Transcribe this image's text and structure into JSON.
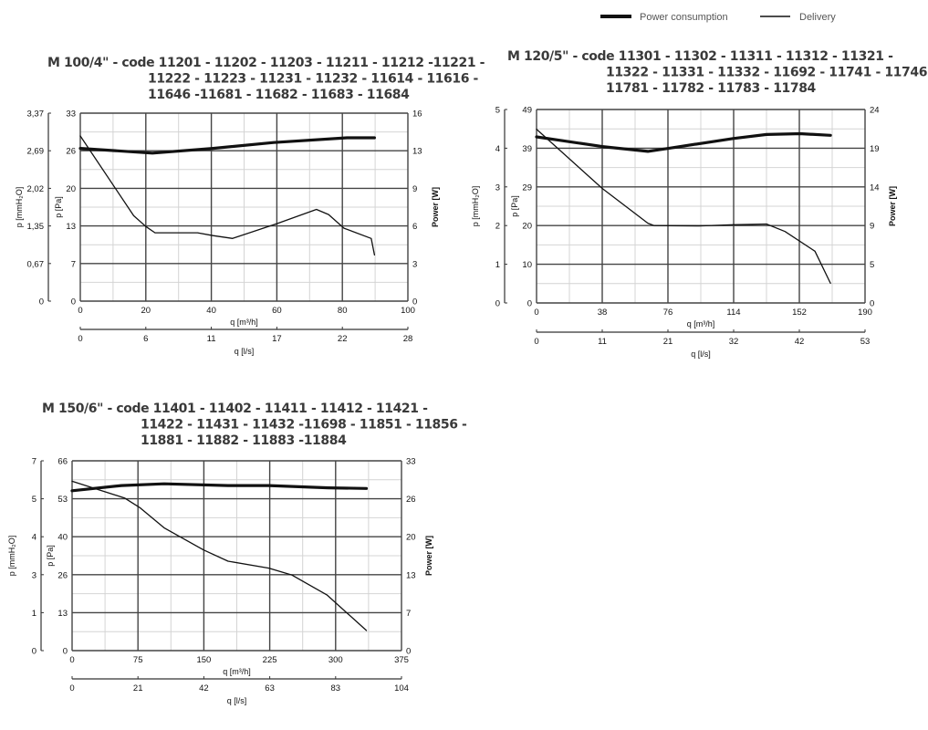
{
  "legend": {
    "power_label": "Power consumption",
    "delivery_label": "Delivery"
  },
  "colors": {
    "curve": "#111111",
    "major_grid": "#444444",
    "minor_grid": "#d4d4d4",
    "title": "#3a3a3a"
  },
  "chart_data": [
    {
      "type": "line",
      "title_lines": [
        "M 100/4\" - code 11201 - 11202 - 11203 - 11211 - 11212 -11221 -",
        "11222 - 11223 - 11231 - 11232 - 11614 - 11616 -",
        "11646 -11681 - 11682 - 11683 - 11684"
      ],
      "xlabel": "q [m³/h]",
      "xlim": [
        0,
        100
      ],
      "xticks": [
        "0",
        "20",
        "40",
        "60",
        "80",
        "100"
      ],
      "x2label": "q [l/s]",
      "x2ticks": [
        "0",
        "6",
        "11",
        "17",
        "22",
        "28"
      ],
      "ylabel": "p [Pa]",
      "ylim": [
        0,
        33
      ],
      "yticks": [
        "0",
        "7",
        "13",
        "20",
        "26",
        "33"
      ],
      "ylabel_mm": "p [mmH₂O]",
      "yticks_mm": [
        "0",
        "0,67",
        "1,35",
        "2,02",
        "2,69",
        "3,37"
      ],
      "y2label": "Power [W]",
      "y2lim": [
        0,
        16
      ],
      "y2ticks": [
        "0",
        "3",
        "6",
        "9",
        "13",
        "16"
      ],
      "grid": true,
      "series": [
        {
          "name": "Power consumption",
          "axis": "power",
          "x": [
            0,
            22,
            40.5,
            59,
            81.4,
            89.8
          ],
          "y": [
            13.0,
            12.6,
            13.0,
            13.5,
            13.9,
            13.9
          ]
        },
        {
          "name": "Delivery",
          "axis": "pressure",
          "x": [
            0,
            16.3,
            20,
            22.8,
            35.8,
            40.5,
            46.5,
            60,
            72.1,
            75.8,
            80.5,
            88.8,
            89.8
          ],
          "y": [
            29.0,
            15.0,
            13.1,
            12.0,
            12.0,
            11.5,
            11.0,
            13.6,
            16.1,
            15.2,
            12.8,
            11.0,
            8.1
          ]
        }
      ]
    },
    {
      "type": "line",
      "title_lines": [
        "M 120/5\" - code 11301 - 11302 - 11311 - 11312 - 11321 -",
        "11322 - 11331 - 11332 - 11692 - 11741 - 11746 -",
        "11781 - 11782 - 11783 - 11784"
      ],
      "xlabel": "q [m³/h]",
      "xlim": [
        0,
        190
      ],
      "xticks": [
        "0",
        "38",
        "76",
        "114",
        "152",
        "190"
      ],
      "x2label": "q [l/s]",
      "x2ticks": [
        "0",
        "11",
        "21",
        "32",
        "42",
        "53"
      ],
      "ylabel": "p [Pa]",
      "ylim": [
        0,
        49
      ],
      "yticks": [
        "0",
        "10",
        "20",
        "29",
        "39",
        "49"
      ],
      "ylabel_mm": "p [mmH₂O]",
      "yticks_mm": [
        "0",
        "1",
        "2",
        "3",
        "4",
        "5"
      ],
      "y2label": "Power [W]",
      "y2lim": [
        0,
        24
      ],
      "y2ticks": [
        "0",
        "5",
        "9",
        "14",
        "19",
        "24"
      ],
      "grid": true,
      "series": [
        {
          "name": "Power consumption",
          "axis": "power",
          "x": [
            0,
            38,
            64.4,
            76.8,
            113.7,
            133,
            152.5,
            170
          ],
          "y": [
            20.6,
            19.4,
            18.8,
            19.2,
            20.4,
            20.9,
            21.0,
            20.8
          ]
        },
        {
          "name": "Delivery",
          "axis": "pressure",
          "x": [
            0,
            38,
            64.4,
            68,
            94,
            113.7,
            133,
            143.7,
            161,
            170
          ],
          "y": [
            44.0,
            29.0,
            20.2,
            19.6,
            19.5,
            19.8,
            20.0,
            18.1,
            13.1,
            5.0
          ]
        }
      ]
    },
    {
      "type": "line",
      "title_lines": [
        "M 150/6\" - code 11401 - 11402 - 11411 - 11412 - 11421 -",
        "11422 - 11431 - 11432 -11698 - 11851 - 11856 -",
        "11881 - 11882 - 11883 -11884"
      ],
      "xlabel": "q [m³/h]",
      "xlim": [
        0,
        375
      ],
      "xticks": [
        "0",
        "75",
        "150",
        "225",
        "300",
        "375"
      ],
      "x2label": "q [l/s]",
      "x2ticks": [
        "0",
        "21",
        "42",
        "63",
        "83",
        "104"
      ],
      "ylabel": "p [Pa]",
      "ylim": [
        0,
        66
      ],
      "yticks": [
        "0",
        "13",
        "26",
        "40",
        "53",
        "66"
      ],
      "ylabel_mm": "p [mmH₂O]",
      "yticks_mm": [
        "0",
        "1",
        "3",
        "4",
        "5",
        "7"
      ],
      "y2label": "Power [W]",
      "y2lim": [
        0,
        33
      ],
      "y2ticks": [
        "0",
        "7",
        "13",
        "20",
        "26",
        "33"
      ],
      "grid": true,
      "series": [
        {
          "name": "Power consumption",
          "axis": "power",
          "x": [
            0,
            56.2,
            104.7,
            177.5,
            224,
            291.8,
            335
          ],
          "y": [
            27.8,
            28.7,
            29.0,
            28.7,
            28.7,
            28.3,
            28.2
          ]
        },
        {
          "name": "Delivery",
          "axis": "pressure",
          "x": [
            0,
            59.6,
            77.7,
            104.7,
            149.7,
            177.5,
            224,
            250,
            290,
            335
          ],
          "y": [
            58.9,
            53.1,
            49.6,
            42.7,
            35.0,
            31.1,
            28.7,
            26.3,
            19.4,
            7.0
          ]
        }
      ]
    }
  ]
}
